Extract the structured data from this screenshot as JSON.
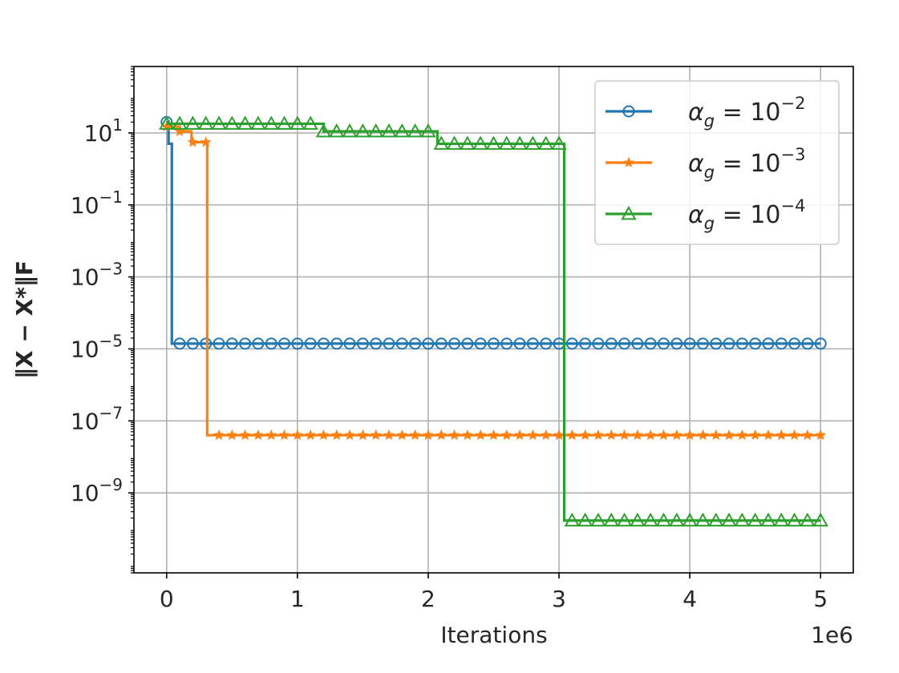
{
  "chart_data": {
    "type": "line",
    "xlabel": "Iterations",
    "ylabel": "‖X − X*‖F",
    "x_offset_label": "1e6",
    "x_scale": "linear",
    "y_scale": "log",
    "xlim": [
      -250000,
      5250000
    ],
    "ylim": [
      6e-12,
      700
    ],
    "x_ticks": [
      0,
      1000000,
      2000000,
      3000000,
      4000000,
      5000000
    ],
    "x_tick_labels": [
      "0",
      "1",
      "2",
      "3",
      "4",
      "5"
    ],
    "y_ticks": [
      1e-09,
      1e-07,
      1e-05,
      0.001,
      0.1,
      10
    ],
    "y_tick_labels": [
      {
        "base": "10",
        "exp": "−9"
      },
      {
        "base": "10",
        "exp": "−7"
      },
      {
        "base": "10",
        "exp": "−5"
      },
      {
        "base": "10",
        "exp": "−3"
      },
      {
        "base": "10",
        "exp": "−1"
      },
      {
        "base": "10",
        "exp": "1"
      }
    ],
    "grid": true,
    "legend_position": "top-right",
    "series": [
      {
        "name": "α_g = 10^−2",
        "label_parts": {
          "symbol": "α",
          "sub": "g",
          "eq": " = 10",
          "exp": "−2"
        },
        "color": "#1f77b4",
        "marker": "circle",
        "marker_every": 100000,
        "x_end": 5000000,
        "steps": [
          {
            "x": 0,
            "y": 20
          },
          {
            "x": 15000,
            "y": 5
          },
          {
            "x": 40000,
            "y": 1.4e-05
          }
        ]
      },
      {
        "name": "α_g = 10^−3",
        "label_parts": {
          "symbol": "α",
          "sub": "g",
          "eq": " = 10",
          "exp": "−3"
        },
        "color": "#ff7f0e",
        "marker": "star",
        "marker_every": 100000,
        "x_end": 5000000,
        "steps": [
          {
            "x": 0,
            "y": 15
          },
          {
            "x": 100000,
            "y": 11
          },
          {
            "x": 190000,
            "y": 5.5
          },
          {
            "x": 310000,
            "y": 4e-08
          }
        ]
      },
      {
        "name": "α_g = 10^−4",
        "label_parts": {
          "symbol": "α",
          "sub": "g",
          "eq": " = 10",
          "exp": "−4"
        },
        "color": "#2ca02c",
        "marker": "triangle",
        "marker_every": 100000,
        "x_end": 5000000,
        "steps": [
          {
            "x": 0,
            "y": 18
          },
          {
            "x": 1200000,
            "y": 11
          },
          {
            "x": 2070000,
            "y": 5
          },
          {
            "x": 3040000,
            "y": 1.7e-10
          }
        ]
      }
    ]
  }
}
